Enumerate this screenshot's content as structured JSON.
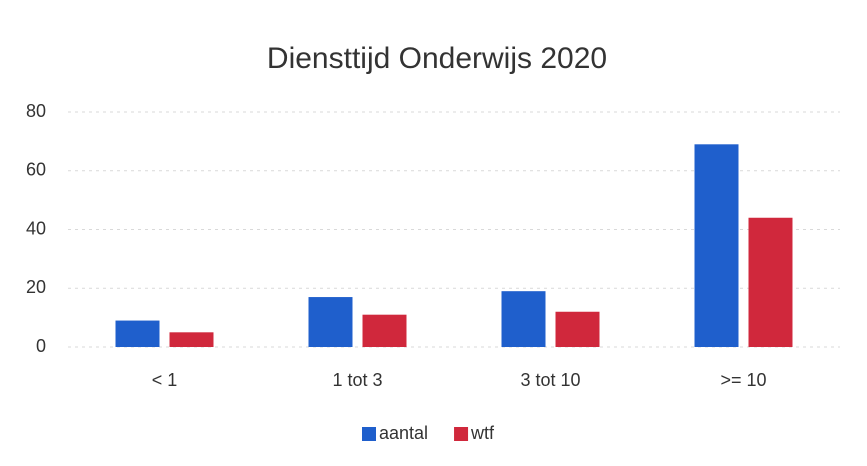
{
  "chart_data": {
    "type": "bar",
    "title": "Diensttijd Onderwijs 2020",
    "categories": [
      "< 1",
      "1 tot 3",
      "3 tot 10",
      ">= 10"
    ],
    "series": [
      {
        "name": "aantal",
        "color": "#1f5fcc",
        "values": [
          9,
          17,
          19,
          69
        ]
      },
      {
        "name": "wtf",
        "color": "#d0283c",
        "values": [
          5,
          11,
          12,
          44
        ]
      }
    ],
    "ylim": [
      0,
      80
    ],
    "yticks": [
      0,
      20,
      40,
      60,
      80
    ],
    "grid": true,
    "legend": "bottom"
  }
}
